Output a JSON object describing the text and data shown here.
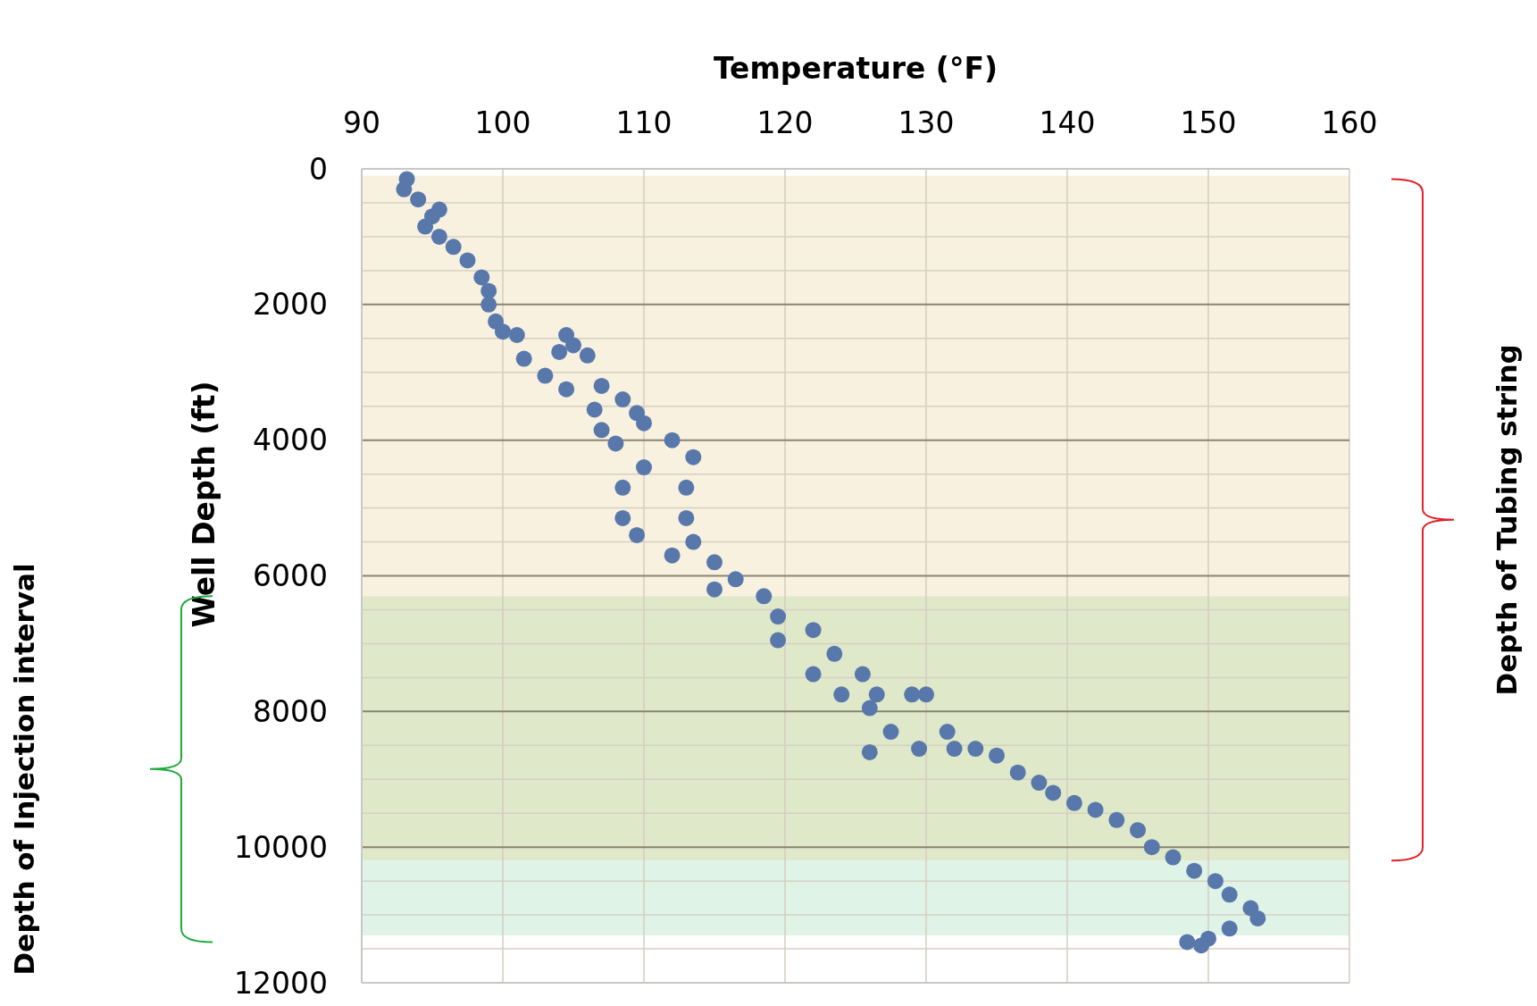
{
  "chart_data": {
    "type": "scatter",
    "xlabel": "Temperature (°F)",
    "ylabel": "Well Depth (ft)",
    "xlim": [
      90,
      160
    ],
    "xticks": [
      90,
      100,
      110,
      120,
      130,
      140,
      150,
      160
    ],
    "ylim": [
      12000,
      0
    ],
    "yticks": [
      0,
      {
        "value": 500,
        "label": null
      },
      {
        "value": 1000,
        "label": null
      },
      {
        "value": 1500,
        "label": null
      },
      2000,
      {
        "value": 2500,
        "label": null
      },
      {
        "value": 3000,
        "label": null
      },
      {
        "value": 3500,
        "label": null
      },
      4000,
      {
        "value": 4500,
        "label": null
      },
      {
        "value": 5000,
        "label": null
      },
      {
        "value": 5500,
        "label": null
      },
      6000,
      {
        "value": 6500,
        "label": null
      },
      {
        "value": 7000,
        "label": null
      },
      {
        "value": 7500,
        "label": null
      },
      8000,
      {
        "value": 8500,
        "label": null
      },
      {
        "value": 9000,
        "label": null
      },
      {
        "value": 9500,
        "label": null
      },
      10000,
      {
        "value": 10500,
        "label": null
      },
      {
        "value": 11000,
        "label": null
      },
      {
        "value": 11500,
        "label": null
      },
      12000
    ],
    "grid": true,
    "marker": "circle",
    "annotations": [
      "Depth of Tubing string",
      "Depth of Injection interval"
    ],
    "bands": [
      {
        "axis": "y",
        "from": 100,
        "to": 6300,
        "color": "#f8f1df"
      },
      {
        "axis": "y",
        "from": 6300,
        "to": 10200,
        "color": "#dfe8c9"
      },
      {
        "axis": "y",
        "from": 10200,
        "to": 11300,
        "color": "#dff3e6"
      }
    ],
    "series": [
      {
        "color": "#5878ab",
        "x": [
          93.2,
          93,
          94,
          95.5,
          95,
          94.5,
          95.5,
          96.5,
          97.5,
          98.5,
          99,
          99,
          99.5,
          100,
          101,
          104.5,
          105,
          101.5,
          104,
          106,
          103,
          107,
          104.5,
          108.5,
          106.5,
          109.5,
          107,
          110,
          108,
          112,
          113.5,
          110,
          113,
          108.5,
          113,
          108.5,
          109.5,
          113.5,
          112,
          115,
          116.5,
          115,
          118.5,
          119.5,
          122,
          119.5,
          123.5,
          122,
          125.5,
          124,
          126.5,
          126,
          129,
          130,
          127.5,
          131.5,
          129.5,
          126,
          132,
          133.5,
          135,
          136.5,
          138,
          139,
          140.5,
          142,
          143.5,
          145,
          146,
          147.5,
          149,
          150.5,
          151.5,
          153,
          153.5,
          151.5,
          150,
          148.5,
          149.5
        ],
        "values": [
          150,
          300,
          450,
          600,
          700,
          850,
          1000,
          1150,
          1350,
          1600,
          1800,
          2000,
          2250,
          2400,
          2450,
          2450,
          2600,
          2800,
          2700,
          2750,
          3050,
          3200,
          3250,
          3400,
          3550,
          3600,
          3850,
          3750,
          4050,
          4000,
          4250,
          4400,
          4700,
          4700,
          5150,
          5150,
          5400,
          5500,
          5700,
          5800,
          6050,
          6200,
          6300,
          6600,
          6800,
          6950,
          7150,
          7450,
          7450,
          7750,
          7750,
          7950,
          7750,
          7750,
          8300,
          8300,
          8550,
          8600,
          8550,
          8550,
          8650,
          8900,
          9050,
          9200,
          9350,
          9450,
          9600,
          9750,
          10000,
          10150,
          10350,
          10500,
          10700,
          10900,
          11050,
          11200,
          11350,
          11400,
          11450
        ]
      }
    ]
  }
}
